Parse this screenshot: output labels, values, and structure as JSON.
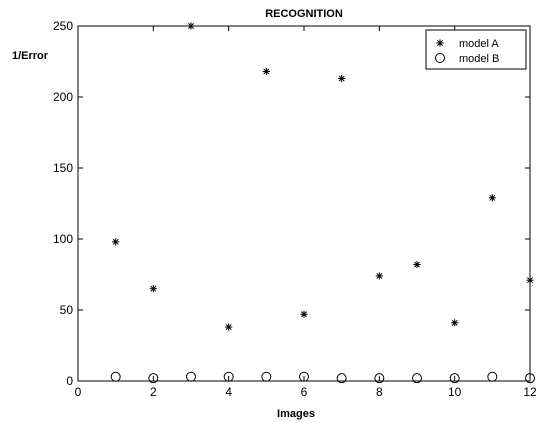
{
  "chart_data": {
    "type": "scatter",
    "title": "RECOGNITION",
    "xlabel": "Images",
    "ylabel": "1/Error",
    "xlim": [
      0,
      12
    ],
    "ylim": [
      0,
      250
    ],
    "xticks": [
      0,
      2,
      4,
      6,
      8,
      10,
      12
    ],
    "yticks": [
      0,
      50,
      100,
      150,
      200,
      250
    ],
    "grid": false,
    "legend": "top-right",
    "series": [
      {
        "name": "model A",
        "marker": "asterisk",
        "color": "#000000",
        "x": [
          1,
          2,
          3,
          4,
          5,
          6,
          7,
          8,
          9,
          10,
          11,
          12
        ],
        "y": [
          98,
          65,
          250,
          38,
          218,
          47,
          213,
          74,
          82,
          41,
          129,
          71
        ]
      },
      {
        "name": "model B",
        "marker": "circle",
        "color": "#000000",
        "x": [
          1,
          2,
          3,
          4,
          5,
          6,
          7,
          8,
          9,
          10,
          11,
          12
        ],
        "y": [
          3,
          2,
          3,
          3,
          3,
          3,
          2,
          2,
          2,
          2,
          3,
          2
        ]
      }
    ]
  }
}
